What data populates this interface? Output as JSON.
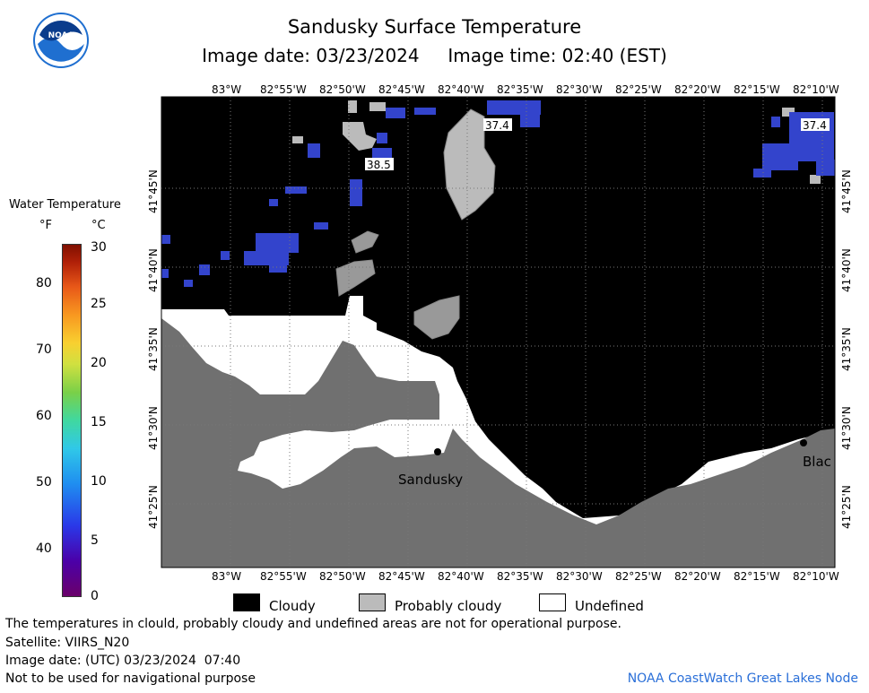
{
  "header": {
    "title": "Sandusky Surface Temperature",
    "subtitle": "Image date: 03/23/2024     Image time: 02:40 (EST)"
  },
  "logo": {
    "icon": "noaa-logo-icon",
    "text": "NOAA"
  },
  "map": {
    "longitude_labels": [
      "83°W",
      "82°55'W",
      "82°50'W",
      "82°45'W",
      "82°40'W",
      "82°35'W",
      "82°30'W",
      "82°25'W",
      "82°20'W",
      "82°15'W",
      "82°10'W"
    ],
    "latitude_labels": [
      "41°45'N",
      "41°40'N",
      "41°35'N",
      "41°30'N",
      "41°25'N"
    ],
    "places": [
      {
        "name": "Sandusky"
      },
      {
        "name": "Blac"
      }
    ],
    "temperature_labels": [
      "37.4",
      "38.5",
      "37.4"
    ],
    "colors": {
      "cloudy": "#000000",
      "probably_cloudy": "#bbbbbb",
      "land": "#707070",
      "undefined": "#ffffff",
      "cold_water": "#3344cc"
    }
  },
  "colorbar": {
    "title": "Water Temperature",
    "unit_f": "°F",
    "unit_c": "°C",
    "f_labels": [
      "80",
      "70",
      "60",
      "50",
      "40"
    ],
    "c_labels": [
      "30",
      "25",
      "20",
      "15",
      "10",
      "5",
      "0"
    ]
  },
  "legend": {
    "items": [
      {
        "label": "Cloudy",
        "color": "#000000"
      },
      {
        "label": "Probably cloudy",
        "color": "#bbbbbb"
      },
      {
        "label": "Undefined",
        "color": "#ffffff"
      }
    ]
  },
  "footer": {
    "disclaimer": "The temperatures in clould, probably cloudy and undefined areas are not for operational purpose.",
    "satellite": "Satellite: VIIRS_N20",
    "utc_date": "Image date: (UTC) 03/23/2024  07:40",
    "nav_note": "Not to be used for navigational purpose",
    "credit": "NOAA CoastWatch Great Lakes Node"
  }
}
